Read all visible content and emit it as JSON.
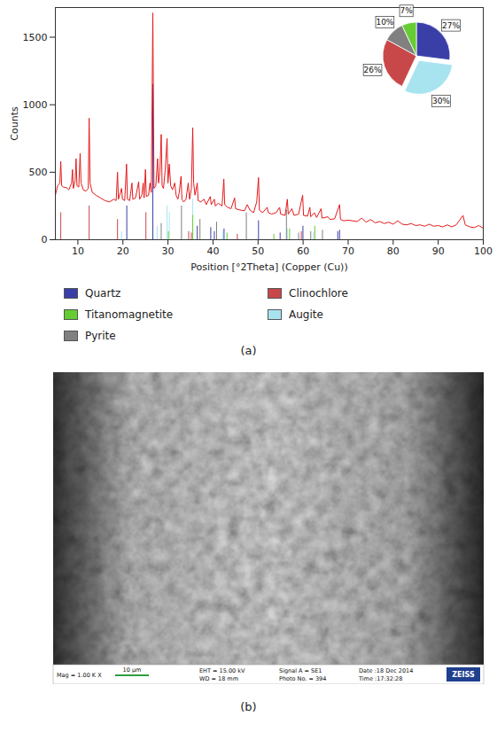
{
  "chart_data": [
    {
      "type": "line",
      "x_label": "Position [°2Theta] (Copper (Cu))",
      "y_label": "Counts",
      "xlim": [
        5,
        100
      ],
      "xticks": [
        10,
        20,
        30,
        40,
        50,
        60,
        70,
        80,
        90,
        100
      ],
      "ylim": [
        0,
        1720
      ],
      "yticks": [
        0,
        500,
        1000,
        1500
      ],
      "x": [
        5.0,
        5.5,
        6.0,
        6.2,
        6.4,
        6.8,
        7.5,
        8.0,
        8.6,
        8.8,
        9.0,
        9.4,
        9.6,
        9.8,
        10.2,
        10.5,
        10.7,
        11.2,
        11.8,
        12.3,
        12.5,
        12.7,
        13.2,
        14,
        15,
        16,
        17,
        18,
        18.5,
        18.8,
        19.0,
        19.7,
        19.9,
        20.4,
        20.8,
        21.0,
        21.5,
        22.0,
        22.2,
        22.8,
        23.5,
        23.7,
        24.2,
        24.5,
        24.7,
        25.0,
        25.2,
        25.7,
        26.0,
        26.3,
        26.64,
        26.9,
        27.3,
        27.7,
        27.9,
        28.2,
        28.5,
        28.7,
        29.0,
        29.4,
        29.8,
        30.0,
        30.3,
        30.6,
        31.0,
        31.5,
        31.8,
        32.2,
        32.5,
        32.9,
        33.1,
        33.5,
        34.0,
        34.5,
        34.8,
        35.2,
        35.5,
        35.7,
        36.0,
        36.5,
        36.7,
        37.3,
        38,
        38.5,
        39.4,
        39.6,
        40.3,
        40.5,
        41.2,
        42.0,
        42.4,
        42.6,
        43.2,
        44,
        44.8,
        45.0,
        46,
        47,
        47.6,
        48.2,
        49,
        49.7,
        50.1,
        50.3,
        51,
        52,
        52.3,
        53,
        54,
        54.8,
        55,
        56,
        56.5,
        56.7,
        57.5,
        58,
        59,
        59.9,
        60.1,
        61,
        61.5,
        61.7,
        62.5,
        63,
        64,
        64.2,
        65.5,
        66,
        67,
        68.1,
        68.3,
        69,
        70,
        71,
        72,
        73,
        74,
        75,
        76,
        77,
        78,
        79,
        80,
        81,
        82,
        83,
        84,
        85,
        86,
        87,
        88,
        89,
        90,
        91,
        92,
        93,
        94,
        95.5,
        96,
        97,
        98,
        99,
        100
      ],
      "series": [
        {
          "color": "#e41a1c",
          "values": [
            330,
            400,
            420,
            580,
            400,
            390,
            385,
            370,
            420,
            520,
            380,
            440,
            600,
            400,
            390,
            640,
            420,
            370,
            360,
            380,
            900,
            420,
            350,
            330,
            310,
            290,
            280,
            300,
            290,
            500,
            300,
            380,
            300,
            290,
            560,
            300,
            290,
            420,
            300,
            310,
            430,
            300,
            330,
            420,
            310,
            520,
            320,
            330,
            420,
            350,
            1680,
            380,
            400,
            600,
            420,
            500,
            780,
            400,
            380,
            520,
            750,
            420,
            560,
            400,
            370,
            420,
            330,
            300,
            350,
            470,
            300,
            280,
            300,
            420,
            300,
            380,
            830,
            420,
            330,
            420,
            290,
            280,
            300,
            260,
            320,
            260,
            300,
            250,
            270,
            250,
            450,
            260,
            240,
            230,
            310,
            230,
            220,
            215,
            260,
            220,
            200,
            280,
            460,
            220,
            200,
            240,
            200,
            190,
            200,
            240,
            190,
            180,
            300,
            190,
            230,
            180,
            190,
            330,
            180,
            175,
            240,
            170,
            200,
            165,
            230,
            160,
            170,
            150,
            155,
            260,
            150,
            140,
            145,
            140,
            135,
            160,
            130,
            150,
            125,
            135,
            120,
            130,
            115,
            140,
            115,
            110,
            120,
            105,
            110,
            100,
            115,
            100,
            105,
            95,
            110,
            95,
            110,
            180,
            110,
            95,
            90,
            105,
            85
          ]
        }
      ],
      "reference_peaks": [
        {
          "phase": "Quartz",
          "positions": [
            20.86,
            26.64,
            36.5,
            39.5,
            40.3,
            42.45,
            50.1,
            54.9,
            59.96,
            67.7,
            68.1
          ],
          "heights": [
            250,
            1150,
            100,
            90,
            60,
            80,
            140,
            50,
            100,
            60,
            70
          ]
        },
        {
          "phase": "Augite",
          "positions": [
            19.7,
            27.6,
            29.8,
            30.3,
            35.5,
            42.2,
            56.5,
            62.3
          ],
          "heights": [
            60,
            100,
            250,
            200,
            300,
            60,
            80,
            50
          ]
        },
        {
          "phase": "Clinochlore",
          "positions": [
            6.2,
            12.5,
            18.8,
            25.1,
            34.6,
            35.2,
            45.4,
            59.6
          ],
          "heights": [
            200,
            250,
            150,
            200,
            60,
            50,
            40,
            60
          ]
        },
        {
          "phase": "Pyrite",
          "positions": [
            28.5,
            33.0,
            37.1,
            40.8,
            47.4,
            56.3,
            59.0,
            61.7,
            64.3
          ],
          "heights": [
            120,
            250,
            150,
            130,
            200,
            220,
            50,
            60,
            70
          ]
        },
        {
          "phase": "Titanomagnetite",
          "positions": [
            30.1,
            35.5,
            43.1,
            53.5,
            57.0,
            62.6
          ],
          "heights": [
            60,
            180,
            50,
            40,
            80,
            100
          ]
        }
      ],
      "legend_entries": [
        "Quartz",
        "Clinochlore",
        "Titanomagnetite",
        "Augite",
        "Pyrite"
      ],
      "panel_label": "(a)"
    },
    {
      "type": "pie",
      "categories": [
        "Quartz",
        "Augite",
        "Clinochlore",
        "Pyrite",
        "Titanomagnetite"
      ],
      "values": [
        27,
        30,
        26,
        10,
        7
      ],
      "value_labels": [
        "27%",
        "30%",
        "26%",
        "10%",
        "7%"
      ],
      "colors": [
        "#3a3fa8",
        "#a8e4f0",
        "#c8484a",
        "#808080",
        "#66cc33"
      ],
      "data_labels": true
    }
  ],
  "sem_image": {
    "panel_label": "(b)",
    "mag": "Mag = 1.00 K X",
    "scale_bar": "10 μm",
    "eht": "EHT = 15.00 kV",
    "wd": "WD = 18 mm",
    "signal": "Signal A = SE1",
    "photo": "Photo No. = 394",
    "date": "Date :18 Dec 2014",
    "time": "Time :17:32:28",
    "brand": "ZEISS"
  }
}
